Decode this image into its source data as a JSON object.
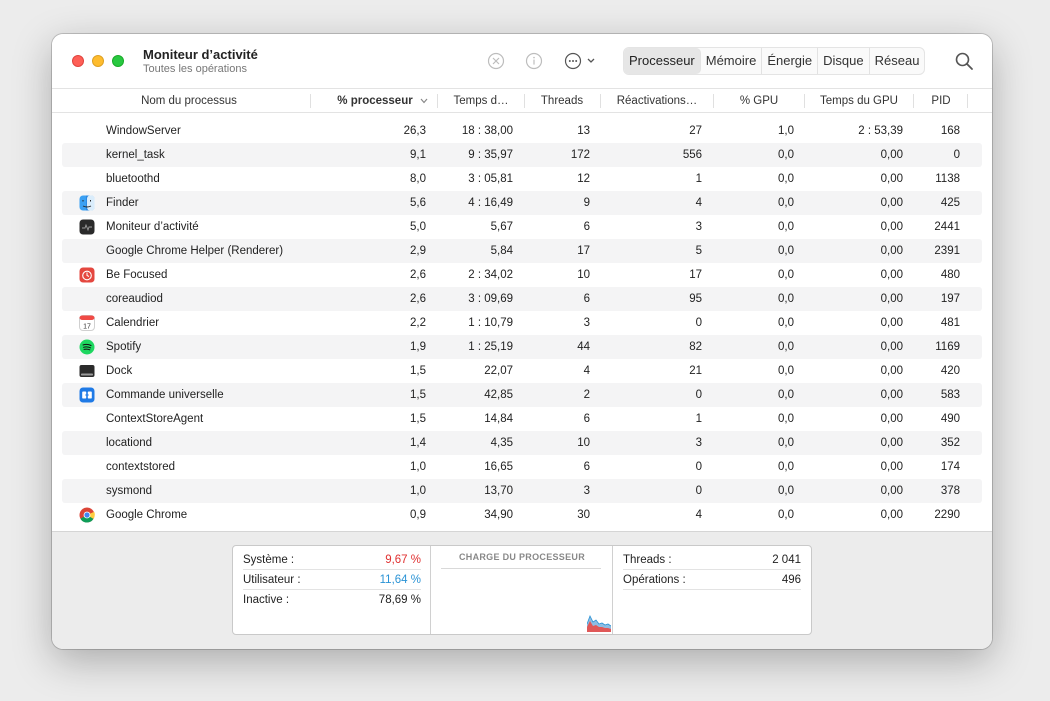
{
  "window": {
    "title": "Moniteur d’activité",
    "subtitle": "Toutes les opérations"
  },
  "toolbar": {
    "stop_icon": "stop-process-icon",
    "info_icon": "info-icon",
    "more_icon": "ellipsis-menu-icon",
    "tabs": [
      "Processeur",
      "Mémoire",
      "Énergie",
      "Disque",
      "Réseau"
    ],
    "active_tab": "Processeur",
    "search_icon": "search-icon"
  },
  "columns": {
    "name": "Nom du processus",
    "cpu": "% processeur",
    "time": "Temps d…",
    "threads": "Threads",
    "wakeups": "Réactivations…",
    "gpu": "% GPU",
    "gpu_time": "Temps du GPU",
    "pid": "PID"
  },
  "rows": [
    {
      "name": "WindowServer",
      "icon": "",
      "cpu": "26,3",
      "time": "18 : 38,00",
      "threads": "13",
      "wakeups": "27",
      "gpu": "1,0",
      "gpu_time": "2 : 53,39",
      "pid": "168"
    },
    {
      "name": "kernel_task",
      "icon": "",
      "cpu": "9,1",
      "time": "9 : 35,97",
      "threads": "172",
      "wakeups": "556",
      "gpu": "0,0",
      "gpu_time": "0,00",
      "pid": "0"
    },
    {
      "name": "bluetoothd",
      "icon": "",
      "cpu": "8,0",
      "time": "3 : 05,81",
      "threads": "12",
      "wakeups": "1",
      "gpu": "0,0",
      "gpu_time": "0,00",
      "pid": "1138"
    },
    {
      "name": "Finder",
      "icon": "finder",
      "cpu": "5,6",
      "time": "4 : 16,49",
      "threads": "9",
      "wakeups": "4",
      "gpu": "0,0",
      "gpu_time": "0,00",
      "pid": "425"
    },
    {
      "name": "Moniteur d’activité",
      "icon": "activity",
      "cpu": "5,0",
      "time": "5,67",
      "threads": "6",
      "wakeups": "3",
      "gpu": "0,0",
      "gpu_time": "0,00",
      "pid": "2441"
    },
    {
      "name": "Google Chrome Helper (Renderer)",
      "icon": "",
      "cpu": "2,9",
      "time": "5,84",
      "threads": "17",
      "wakeups": "5",
      "gpu": "0,0",
      "gpu_time": "0,00",
      "pid": "2391"
    },
    {
      "name": "Be Focused",
      "icon": "befocused",
      "cpu": "2,6",
      "time": "2 : 34,02",
      "threads": "10",
      "wakeups": "17",
      "gpu": "0,0",
      "gpu_time": "0,00",
      "pid": "480"
    },
    {
      "name": "coreaudiod",
      "icon": "",
      "cpu": "2,6",
      "time": "3 : 09,69",
      "threads": "6",
      "wakeups": "95",
      "gpu": "0,0",
      "gpu_time": "0,00",
      "pid": "197"
    },
    {
      "name": "Calendrier",
      "icon": "calendar",
      "cpu": "2,2",
      "time": "1 : 10,79",
      "threads": "3",
      "wakeups": "0",
      "gpu": "0,0",
      "gpu_time": "0,00",
      "pid": "481"
    },
    {
      "name": "Spotify",
      "icon": "spotify",
      "cpu": "1,9",
      "time": "1 : 25,19",
      "threads": "44",
      "wakeups": "82",
      "gpu": "0,0",
      "gpu_time": "0,00",
      "pid": "1169"
    },
    {
      "name": "Dock",
      "icon": "dock",
      "cpu": "1,5",
      "time": "22,07",
      "threads": "4",
      "wakeups": "21",
      "gpu": "0,0",
      "gpu_time": "0,00",
      "pid": "420"
    },
    {
      "name": "Commande universelle",
      "icon": "universal",
      "cpu": "1,5",
      "time": "42,85",
      "threads": "2",
      "wakeups": "0",
      "gpu": "0,0",
      "gpu_time": "0,00",
      "pid": "583"
    },
    {
      "name": "ContextStoreAgent",
      "icon": "",
      "cpu": "1,5",
      "time": "14,84",
      "threads": "6",
      "wakeups": "1",
      "gpu": "0,0",
      "gpu_time": "0,00",
      "pid": "490"
    },
    {
      "name": "locationd",
      "icon": "",
      "cpu": "1,4",
      "time": "4,35",
      "threads": "10",
      "wakeups": "3",
      "gpu": "0,0",
      "gpu_time": "0,00",
      "pid": "352"
    },
    {
      "name": "contextstored",
      "icon": "",
      "cpu": "1,0",
      "time": "16,65",
      "threads": "6",
      "wakeups": "0",
      "gpu": "0,0",
      "gpu_time": "0,00",
      "pid": "174"
    },
    {
      "name": "sysmond",
      "icon": "",
      "cpu": "1,0",
      "time": "13,70",
      "threads": "3",
      "wakeups": "0",
      "gpu": "0,0",
      "gpu_time": "0,00",
      "pid": "378"
    },
    {
      "name": "Google Chrome",
      "icon": "chrome",
      "cpu": "0,9",
      "time": "34,90",
      "threads": "30",
      "wakeups": "4",
      "gpu": "0,0",
      "gpu_time": "0,00",
      "pid": "2290"
    }
  ],
  "summary": {
    "system_label": "Système :",
    "system_value": "9,67 %",
    "user_label": "Utilisateur :",
    "user_value": "11,64 %",
    "idle_label": "Inactive :",
    "idle_value": "78,69 %",
    "chart_title": "CHARGE DU PROCESSEUR",
    "threads_label": "Threads :",
    "threads_value": "2 041",
    "processes_label": "Opérations :",
    "processes_value": "496"
  },
  "colors": {
    "system": "#e03030",
    "user": "#2a93d5",
    "close": "#fe5f57",
    "minimize": "#febc2e",
    "maximize": "#28c840"
  }
}
